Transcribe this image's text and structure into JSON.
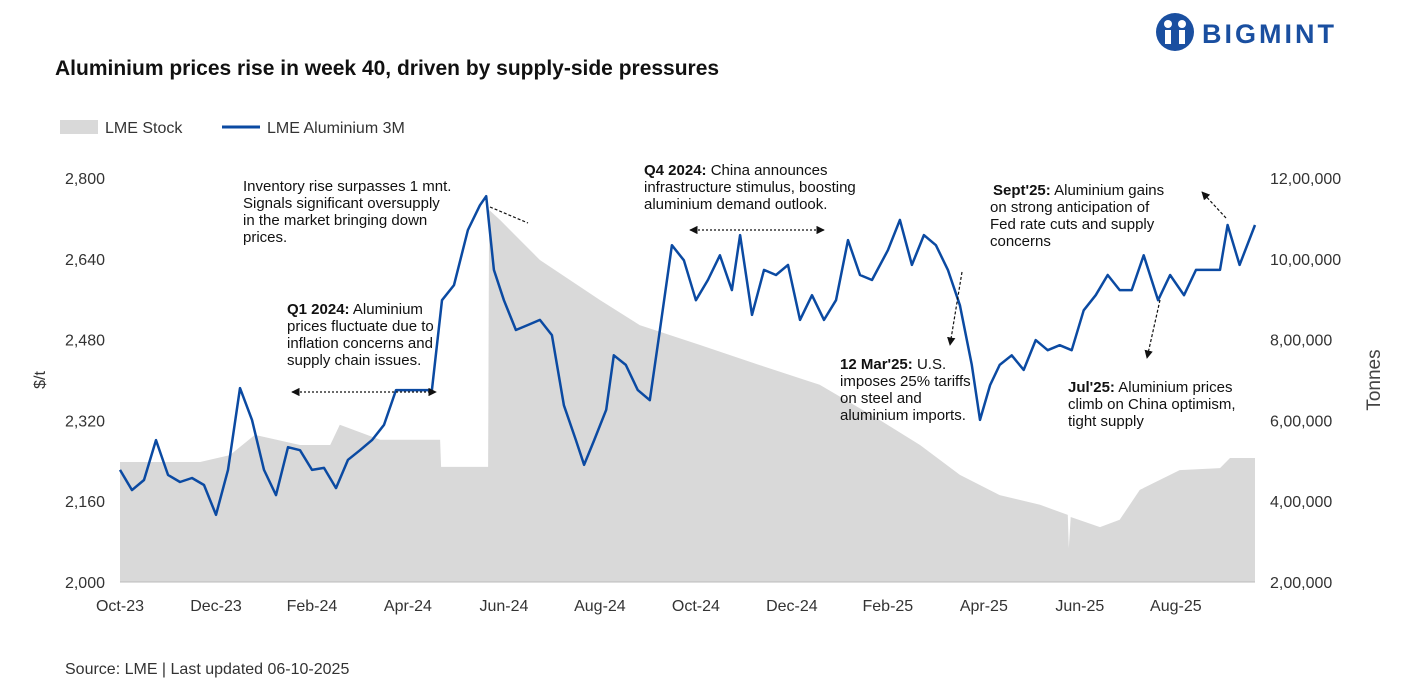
{
  "chart_data": {
    "type": "line",
    "title": "Aluminium prices rise in week 40, driven by supply-side pressures",
    "source": "Source: LME | Last updated 06-10-2025",
    "brand": "BIGMINT",
    "ylabel": "$/t",
    "y2label": "Tonnes",
    "xlim": [
      0,
      23.65
    ],
    "xticks": [
      {
        "value": 0,
        "label": "Oct-23"
      },
      {
        "value": 2,
        "label": "Dec-23"
      },
      {
        "value": 4,
        "label": "Feb-24"
      },
      {
        "value": 6,
        "label": "Apr-24"
      },
      {
        "value": 8,
        "label": "Jun-24"
      },
      {
        "value": 10,
        "label": "Aug-24"
      },
      {
        "value": 12,
        "label": "Oct-24"
      },
      {
        "value": 14,
        "label": "Dec-24"
      },
      {
        "value": 16,
        "label": "Feb-25"
      },
      {
        "value": 18,
        "label": "Apr-25"
      },
      {
        "value": 20,
        "label": "Jun-25"
      },
      {
        "value": 22,
        "label": "Aug-25"
      }
    ],
    "ylim": [
      2000,
      2800
    ],
    "yticks": [
      {
        "value": 2000,
        "label": "2,000"
      },
      {
        "value": 2160,
        "label": "2,160"
      },
      {
        "value": 2320,
        "label": "2,320"
      },
      {
        "value": 2480,
        "label": "2,480"
      },
      {
        "value": 2640,
        "label": "2,640"
      },
      {
        "value": 2800,
        "label": "2,800"
      }
    ],
    "y2lim": [
      200000,
      1200000
    ],
    "y2ticks": [
      {
        "value": 200000,
        "label": "2,00,000"
      },
      {
        "value": 400000,
        "label": "4,00,000"
      },
      {
        "value": 600000,
        "label": "6,00,000"
      },
      {
        "value": 800000,
        "label": "8,00,000"
      },
      {
        "value": 1000000,
        "label": "10,00,000"
      },
      {
        "value": 1200000,
        "label": "12,00,000"
      }
    ],
    "series": [
      {
        "name": "LME Stock",
        "type": "area",
        "axis": "y2",
        "color": "#d9d9d9",
        "x": [
          0,
          1.67,
          2.29,
          2.81,
          3.75,
          4.38,
          4.58,
          5.42,
          6.67,
          6.69,
          7.67,
          7.69,
          7.92,
          8.75,
          10,
          10.83,
          12.08,
          13.33,
          14.58,
          15.83,
          16.67,
          17.5,
          18.33,
          19.17,
          19.75,
          19.77,
          19.81,
          20.42,
          20.83,
          21.25,
          22.08,
          22.92,
          23.13,
          23.65
        ],
        "values": [
          497000,
          497000,
          514000,
          564000,
          539000,
          539000,
          589000,
          552000,
          552000,
          485000,
          485000,
          1121000,
          1096000,
          997000,
          898000,
          836000,
          787000,
          737000,
          688000,
          601000,
          539000,
          465000,
          415000,
          391000,
          366000,
          284000,
          361000,
          336000,
          354000,
          428000,
          477000,
          482000,
          507000,
          507000
        ]
      },
      {
        "name": "LME Aluminium 3M",
        "type": "line",
        "color": "#0b4aa2",
        "x": [
          0,
          0.25,
          0.5,
          0.75,
          1,
          1.25,
          1.5,
          1.75,
          2,
          2.25,
          2.5,
          2.75,
          3,
          3.25,
          3.5,
          3.75,
          4,
          4.25,
          4.5,
          4.75,
          5,
          5.25,
          5.5,
          5.75,
          6,
          6.25,
          6.5,
          6.71,
          6.96,
          7.25,
          7.5,
          7.63,
          7.79,
          8,
          8.25,
          8.5,
          8.75,
          9,
          9.25,
          9.5,
          9.67,
          9.88,
          10.13,
          10.29,
          10.54,
          10.79,
          11.04,
          11.25,
          11.5,
          11.75,
          12,
          12.25,
          12.5,
          12.75,
          12.92,
          13.17,
          13.42,
          13.67,
          13.92,
          14.17,
          14.42,
          14.67,
          14.92,
          15.17,
          15.42,
          15.67,
          16,
          16.25,
          16.5,
          16.75,
          17,
          17.25,
          17.5,
          17.75,
          17.92,
          18.13,
          18.33,
          18.58,
          18.83,
          19.08,
          19.33,
          19.58,
          19.83,
          20.08,
          20.33,
          20.58,
          20.83,
          21.08,
          21.33,
          21.63,
          21.88,
          22.17,
          22.42,
          22.67,
          22.92,
          23.08,
          23.33,
          23.65
        ],
        "values": [
          2222,
          2182,
          2202,
          2281,
          2212,
          2198,
          2206,
          2192,
          2133,
          2222,
          2384,
          2321,
          2222,
          2172,
          2267,
          2261,
          2222,
          2226,
          2186,
          2242,
          2261,
          2281,
          2311,
          2380,
          2380,
          2380,
          2380,
          2558,
          2588,
          2697,
          2746,
          2764,
          2618,
          2558,
          2499,
          2509,
          2519,
          2489,
          2350,
          2281,
          2232,
          2281,
          2341,
          2449,
          2430,
          2380,
          2360,
          2499,
          2667,
          2637,
          2558,
          2598,
          2647,
          2578,
          2687,
          2529,
          2618,
          2608,
          2628,
          2519,
          2568,
          2519,
          2558,
          2677,
          2608,
          2598,
          2657,
          2717,
          2628,
          2687,
          2667,
          2618,
          2548,
          2430,
          2321,
          2390,
          2430,
          2449,
          2420,
          2479,
          2459,
          2469,
          2459,
          2538,
          2568,
          2608,
          2578,
          2578,
          2647,
          2558,
          2608,
          2568,
          2618,
          2618,
          2618,
          2707,
          2628,
          2707
        ]
      }
    ],
    "annotations": [
      {
        "lines": [
          "Inventory rise surpasses 1 mnt.",
          "Signals significant oversupply",
          "in the market bringing down",
          "prices."
        ]
      },
      {
        "bold": "Q1 2024:",
        "lines": [
          " Aluminium",
          "prices fluctuate due to",
          "inflation concerns and",
          "supply chain issues."
        ]
      },
      {
        "bold": "Q4 2024:",
        "lines": [
          " China announces",
          "infrastructure stimulus, boosting",
          "aluminium demand outlook."
        ]
      },
      {
        "bold": "12 Mar'25:",
        "lines": [
          " U.S.",
          "imposes 25% tariffs",
          "on steel and",
          "aluminium imports."
        ]
      },
      {
        "bold": "Sept'25:",
        "lines": [
          " Aluminium gains",
          "on strong anticipation of",
          "Fed rate cuts and supply",
          "concerns"
        ]
      },
      {
        "bold": "Jul'25:",
        "lines": [
          " Aluminium prices",
          "climb on China optimism,",
          "tight supply"
        ]
      }
    ]
  }
}
